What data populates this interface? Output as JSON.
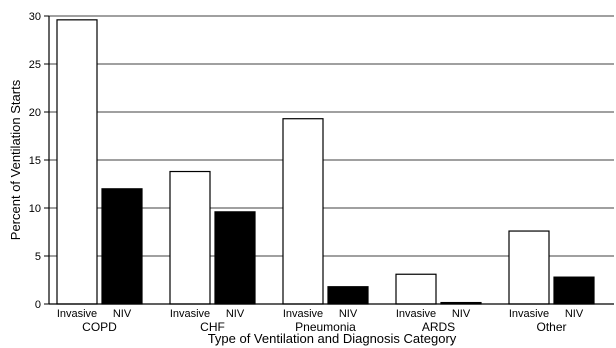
{
  "chart_data": {
    "type": "bar",
    "title": "",
    "xlabel": "Type of Ventilation and Diagnosis Category",
    "ylabel": "Percent of Ventilation Starts",
    "ylim": [
      0,
      30
    ],
    "yticks": [
      0,
      5,
      10,
      15,
      20,
      25,
      30
    ],
    "grid": true,
    "groups": [
      "COPD",
      "CHF",
      "Pneumonia",
      "ARDS",
      "Other"
    ],
    "series": [
      {
        "name": "Invasive",
        "color": "#ffffff",
        "values": [
          29.6,
          13.8,
          19.3,
          3.1,
          7.6
        ]
      },
      {
        "name": "NIV",
        "color": "#000000",
        "values": [
          12.0,
          9.6,
          1.8,
          0.15,
          2.8
        ]
      }
    ]
  }
}
